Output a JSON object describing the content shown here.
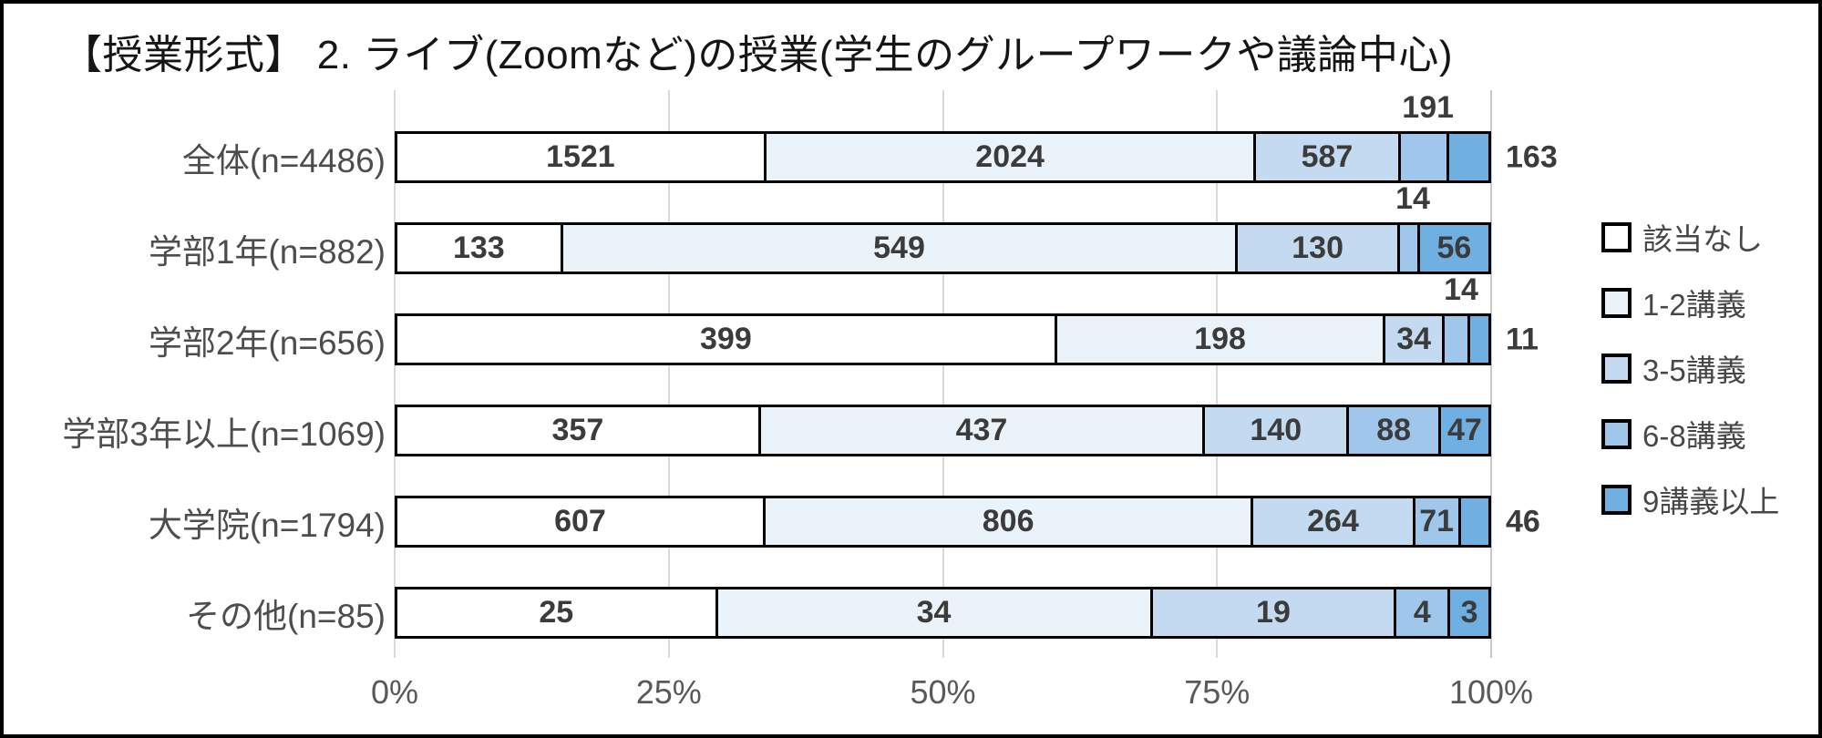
{
  "title": "【授業形式】 2. ライブ(Zoomなど)の授業(学生のグループワークや議論中心)",
  "colors": {
    "frame_border": "#000000",
    "background": "#ffffff",
    "gridline": "#d9d9d9",
    "value_label": "#3b3b3b",
    "category_label": "#4d4d4d",
    "tick_label": "#595959"
  },
  "chart_data": {
    "type": "bar",
    "subtype": "horizontal-100%-stacked",
    "title": "【授業形式】 2. ライブ(Zoomなど)の授業(学生のグループワークや議論中心)",
    "categories": [
      "全体(n=4486)",
      "学部1年(n=882)",
      "学部2年(n=656)",
      "学部3年以上(n=1069)",
      "大学院(n=1794)",
      "その他(n=85)"
    ],
    "category_totals": [
      4486,
      882,
      656,
      1069,
      1794,
      85
    ],
    "series": [
      {
        "name": "該当なし",
        "color": "#ffffff",
        "values": [
          1521,
          133,
          399,
          357,
          607,
          25
        ]
      },
      {
        "name": "1-2講義",
        "color": "#ebf3fa",
        "values": [
          2024,
          549,
          198,
          437,
          806,
          34
        ]
      },
      {
        "name": "3-5講義",
        "color": "#c3daf0",
        "values": [
          587,
          130,
          34,
          140,
          264,
          19
        ]
      },
      {
        "name": "6-8講義",
        "color": "#9fc7ec",
        "values": [
          191,
          14,
          14,
          88,
          71,
          4
        ]
      },
      {
        "name": "9講義以上",
        "color": "#70afe2",
        "values": [
          163,
          56,
          11,
          47,
          46,
          3
        ]
      }
    ],
    "label_positions": [
      [
        "inside",
        "inside",
        "inside",
        "above",
        "right"
      ],
      [
        "inside",
        "inside",
        "inside",
        "above",
        "inside"
      ],
      [
        "inside",
        "inside",
        "inside",
        "above",
        "right"
      ],
      [
        "inside",
        "inside",
        "inside",
        "inside",
        "inside"
      ],
      [
        "inside",
        "inside",
        "inside",
        "inside",
        "right"
      ],
      [
        "inside",
        "inside",
        "inside",
        "inside",
        "inside"
      ]
    ],
    "x_ticks": [
      "0%",
      "25%",
      "50%",
      "75%",
      "100%"
    ],
    "xlim": [
      0,
      100
    ],
    "grid": true,
    "legend_position": "right",
    "legend": [
      "該当なし",
      "1-2講義",
      "3-5講義",
      "6-8講義",
      "9講義以上"
    ]
  }
}
